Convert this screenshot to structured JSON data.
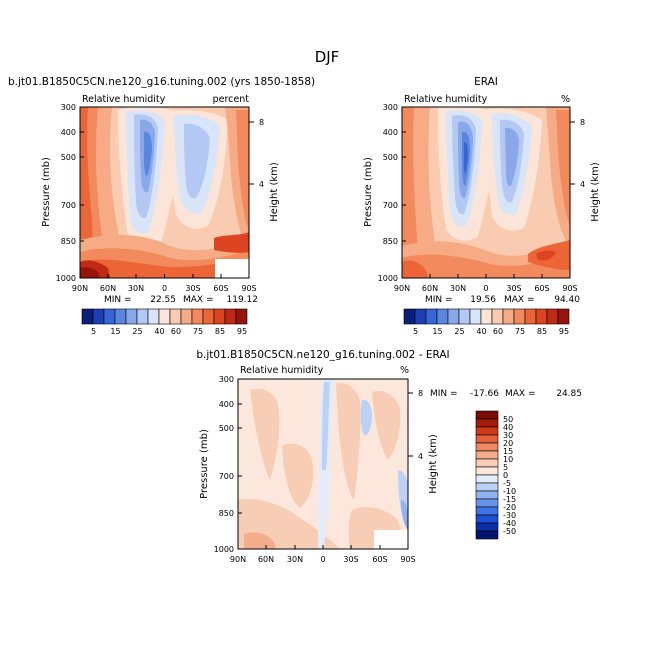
{
  "figure_title": "DJF",
  "colors": {
    "abs_scale": [
      "#0a1f7a",
      "#1c3fb8",
      "#3566d6",
      "#5a86e0",
      "#88a8ea",
      "#b3c8f2",
      "#d8e4f8",
      "#fbe5d8",
      "#f9cbb0",
      "#f6ab85",
      "#f28a5d",
      "#ec6536",
      "#dc4422",
      "#c02a15",
      "#96140c"
    ],
    "diff_scale": [
      "#03146e",
      "#0a2ea6",
      "#1c4fd6",
      "#3f72e4",
      "#6793ea",
      "#91b2f0",
      "#bcd1f6",
      "#e3ecfb",
      "#fbe7dc",
      "#f8cdb5",
      "#f4ad8c",
      "#ee8862",
      "#e4623a",
      "#cf3a1b",
      "#a51c0b",
      "#7a0c05"
    ]
  },
  "chart_data": [
    {
      "type": "heatmap",
      "title": "b.jt01.B1850C5CN.ne120_g16.tuning.002 (yrs 1850-1858)",
      "left_label": "Relative humidity",
      "right_label": "percent",
      "ylabel": "Pressure (mb)",
      "y2label": "Height (km)",
      "xticks": [
        "90N",
        "60N",
        "30N",
        "0",
        "30S",
        "60S",
        "90S"
      ],
      "yticks": [
        "300",
        "400",
        "500",
        "700",
        "850",
        "1000"
      ],
      "y2ticks": [
        "8",
        "4"
      ],
      "min_label": "MIN =",
      "min_value": "22.55",
      "max_label": "MAX =",
      "max_value": "119.12",
      "colorbar_labels": [
        "5",
        "15",
        "25",
        "40",
        "60",
        "75",
        "85",
        "95"
      ]
    },
    {
      "type": "heatmap",
      "title": "ERAI",
      "left_label": "Relative humidity",
      "right_label": "%",
      "ylabel": "Pressure (mb)",
      "y2label": "Height (km)",
      "xticks": [
        "90N",
        "60N",
        "30N",
        "0",
        "30S",
        "60S",
        "90S"
      ],
      "yticks": [
        "300",
        "400",
        "500",
        "700",
        "850",
        "1000"
      ],
      "y2ticks": [
        "8",
        "4"
      ],
      "min_label": "MIN =",
      "min_value": "19.56",
      "max_label": "MAX =",
      "max_value": "94.40",
      "colorbar_labels": [
        "5",
        "15",
        "25",
        "40",
        "60",
        "75",
        "85",
        "95"
      ]
    },
    {
      "type": "heatmap",
      "title": "b.jt01.B1850C5CN.ne120_g16.tuning.002 - ERAI",
      "left_label": "Relative humidity",
      "right_label": "%",
      "ylabel": "Pressure (mb)",
      "y2label": "Height (km)",
      "xticks": [
        "90N",
        "60N",
        "30N",
        "0",
        "30S",
        "60S",
        "90S"
      ],
      "yticks": [
        "300",
        "400",
        "500",
        "700",
        "850",
        "1000"
      ],
      "y2ticks": [
        "8",
        "4"
      ],
      "min_label": "MIN =",
      "min_value": "-17.66",
      "max_label": "MAX =",
      "max_value": "24.85",
      "colorbar_labels": [
        "50",
        "40",
        "30",
        "20",
        "15",
        "10",
        "5",
        "0",
        "-5",
        "-10",
        "-15",
        "-20",
        "-30",
        "-40",
        "-50"
      ]
    }
  ]
}
